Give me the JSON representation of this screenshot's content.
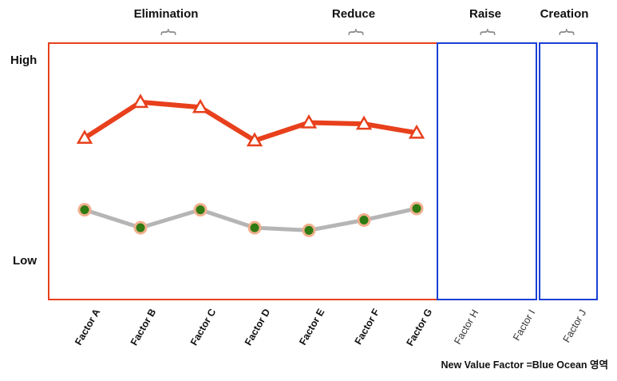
{
  "chart_data": {
    "type": "line",
    "categories": [
      "Factor A",
      "Factor B",
      "Factor C",
      "Factor D",
      "Factor E",
      "Factor F",
      "Factor G",
      "Factor H",
      "Factor I",
      "Factor J"
    ],
    "y_levels": {
      "high": "High",
      "low": "Low"
    },
    "ylim": [
      0,
      10
    ],
    "series": [
      {
        "values": [
          6.3,
          7.7,
          7.5,
          6.2,
          6.9,
          6.85,
          6.5,
          null,
          null,
          null
        ],
        "color": "#e8401c",
        "marker": "triangle-open"
      },
      {
        "values": [
          3.5,
          2.8,
          3.5,
          2.8,
          2.7,
          3.1,
          3.55,
          null,
          null,
          null
        ],
        "color": "#b5b5b5",
        "marker": "circle-green"
      }
    ],
    "sections": [
      {
        "label": "Elimination",
        "color": "#e8401c"
      },
      {
        "label": "Reduce",
        "color": "#e8401c"
      },
      {
        "label": "Raise",
        "color": "#1a3fd6"
      },
      {
        "label": "Creation",
        "color": "#1a3fd6"
      }
    ],
    "footnote": "New Value Factor =Blue Ocean 영역",
    "grid": false
  }
}
